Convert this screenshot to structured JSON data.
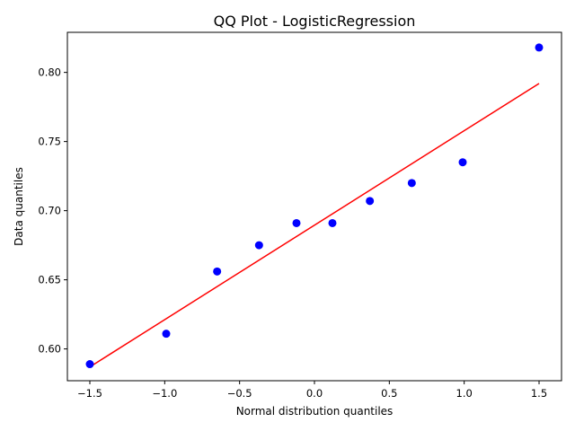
{
  "chart_data": {
    "type": "scatter",
    "title": "QQ Plot - LogisticRegression",
    "xlabel": "Normal distribution quantiles",
    "ylabel": "Data quantiles",
    "xlim": [
      -1.65,
      1.65
    ],
    "ylim": [
      0.577,
      0.829
    ],
    "x_ticks": [
      -1.5,
      -1.0,
      -0.5,
      0.0,
      0.5,
      1.0,
      1.5
    ],
    "x_tick_labels": [
      "−1.5",
      "−1.0",
      "−0.5",
      "0.0",
      "0.5",
      "1.0",
      "1.5"
    ],
    "y_ticks": [
      0.6,
      0.65,
      0.7,
      0.75,
      0.8
    ],
    "y_tick_labels": [
      "0.60",
      "0.65",
      "0.70",
      "0.75",
      "0.80"
    ],
    "grid": false,
    "points": {
      "x": [
        -1.5,
        -0.99,
        -0.65,
        -0.37,
        -0.12,
        0.12,
        0.37,
        0.65,
        0.99,
        1.5
      ],
      "y": [
        0.589,
        0.611,
        0.656,
        0.675,
        0.691,
        0.691,
        0.707,
        0.72,
        0.735,
        0.818
      ],
      "color": "#0000ff"
    },
    "reference_line": {
      "x": [
        -1.5,
        1.5
      ],
      "y": [
        0.587,
        0.792
      ],
      "color": "#ff0000"
    }
  }
}
